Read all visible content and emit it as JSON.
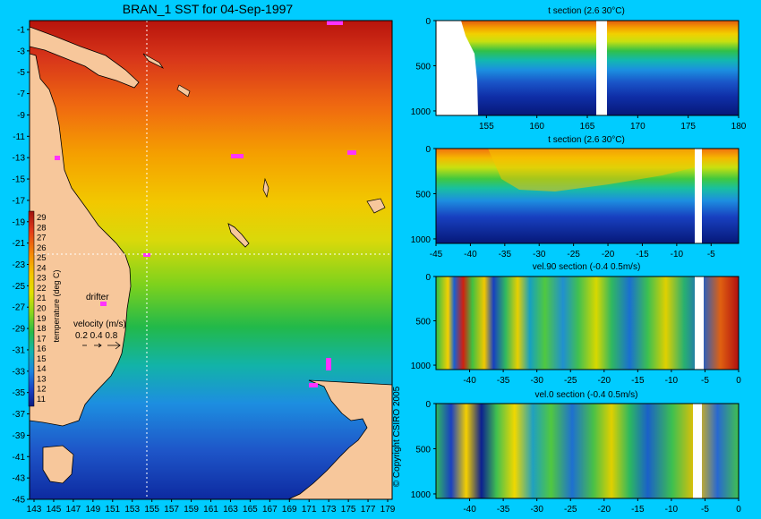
{
  "background_color": "#00ccff",
  "main_map": {
    "title": "BRAN_1 SST for 04-Sep-1997",
    "x_ticks": [
      "143",
      "145",
      "147",
      "149",
      "151",
      "153",
      "155",
      "157",
      "159",
      "161",
      "163",
      "165",
      "167",
      "169",
      "171",
      "173",
      "175",
      "177",
      "179"
    ],
    "y_ticks": [
      "-1",
      "-3",
      "-5",
      "-7",
      "-9",
      "-11",
      "-13",
      "-15",
      "-17",
      "-19",
      "-21",
      "-23",
      "-25",
      "-27",
      "-29",
      "-31",
      "-33",
      "-35",
      "-37",
      "-39",
      "-41",
      "-43",
      "-45"
    ],
    "land_color": "#f7c79b",
    "drifter_color": "#ff33ff",
    "crosshair_lon": 155,
    "crosshair_lat": -23
  },
  "colorbar": {
    "label": "temperature (deg C)",
    "ticks": [
      "29",
      "28",
      "27",
      "26",
      "25",
      "24",
      "23",
      "22",
      "21",
      "20",
      "19",
      "18",
      "17",
      "16",
      "15",
      "14",
      "13",
      "12",
      "11"
    ]
  },
  "legend": {
    "drifter_label": "drifter",
    "velocity_label": "velocity (m/s)",
    "velocity_values": "0.2 0.4 0.8"
  },
  "copyright": "© Copyright CSIRO 2005",
  "panels": [
    {
      "title": "t section (2.6       30°C)",
      "x_ticks": [
        "155",
        "160",
        "165",
        "170",
        "175",
        "180"
      ],
      "y_ticks": [
        "0",
        "500",
        "1000"
      ],
      "xlim": [
        150,
        180
      ]
    },
    {
      "title": "t section (2.6       30°C)",
      "x_ticks": [
        "-45",
        "-40",
        "-35",
        "-30",
        "-25",
        "-20",
        "-15",
        "-10",
        "-5"
      ],
      "y_ticks": [
        "0",
        "500",
        "1000"
      ],
      "xlim": [
        -45,
        -1
      ]
    },
    {
      "title": "vel.90 section (-0.4       0.5m/s)",
      "x_ticks": [
        "-40",
        "-35",
        "-30",
        "-25",
        "-20",
        "-15",
        "-10",
        "-5",
        "0"
      ],
      "y_ticks": [
        "0",
        "500",
        "1000"
      ],
      "xlim": [
        -45,
        0
      ]
    },
    {
      "title": "vel.0 section (-0.4       0.5m/s)",
      "x_ticks": [
        "-40",
        "-35",
        "-30",
        "-25",
        "-20",
        "-15",
        "-10",
        "-5",
        "0"
      ],
      "y_ticks": [
        "0",
        "500",
        "1000"
      ],
      "xlim": [
        -45,
        0
      ]
    }
  ],
  "chart_data": [
    {
      "type": "heatmap",
      "title": "BRAN_1 SST for 04-Sep-1997",
      "xlabel": "",
      "ylabel": "",
      "xlim": [
        143,
        180
      ],
      "ylim": [
        -45,
        0
      ],
      "colorbar_label": "temperature (deg C)",
      "colorbar_range": [
        11,
        29
      ],
      "grid": false
    },
    {
      "type": "heatmap",
      "title": "t section (2.6       30°C)",
      "xlim": [
        150,
        180
      ],
      "ylim": [
        1050,
        0
      ],
      "value_range": [
        2.6,
        30
      ]
    },
    {
      "type": "heatmap",
      "title": "t section (2.6       30°C)",
      "xlim": [
        -45,
        -1
      ],
      "ylim": [
        1050,
        0
      ],
      "value_range": [
        2.6,
        30
      ]
    },
    {
      "type": "heatmap",
      "title": "vel.90 section (-0.4       0.5m/s)",
      "xlim": [
        -45,
        0
      ],
      "ylim": [
        1050,
        0
      ],
      "value_range": [
        -0.4,
        0.5
      ]
    },
    {
      "type": "heatmap",
      "title": "vel.0 section (-0.4       0.5m/s)",
      "xlim": [
        -45,
        0
      ],
      "ylim": [
        1050,
        0
      ],
      "value_range": [
        -0.4,
        0.5
      ]
    }
  ]
}
